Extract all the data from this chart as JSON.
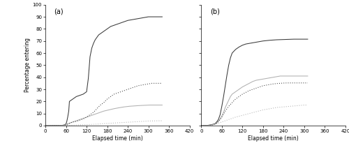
{
  "title_a": "(a)",
  "title_b": "(b)",
  "xlabel": "Elapsed time (min)",
  "ylabel": "Percentage entering",
  "xlim": [
    0,
    420
  ],
  "ylim": [
    0,
    100
  ],
  "xticks": [
    0,
    60,
    120,
    180,
    240,
    300,
    360,
    420
  ],
  "yticks": [
    0,
    10,
    20,
    30,
    40,
    50,
    60,
    70,
    80,
    90,
    100
  ],
  "color_dark": "#3a3a3a",
  "color_gray": "#b0b0b0",
  "panel_a": {
    "wild_large_solid": {
      "x": [
        0,
        50,
        58,
        60,
        62,
        65,
        68,
        70,
        75,
        80,
        85,
        90,
        100,
        110,
        120,
        125,
        130,
        135,
        140,
        145,
        150,
        155,
        160,
        170,
        180,
        190,
        200,
        210,
        220,
        230,
        240,
        250,
        260,
        270,
        280,
        290,
        300,
        310,
        320,
        330,
        340
      ],
      "y": [
        0,
        0.3,
        0.8,
        1.5,
        3,
        7,
        12,
        20,
        21,
        22,
        23,
        24,
        25,
        26,
        28,
        39,
        57,
        64,
        68,
        71,
        73,
        75,
        76,
        78,
        80,
        82,
        83,
        84,
        85,
        86,
        87,
        87.5,
        88,
        88.5,
        89,
        89.5,
        90,
        90,
        90,
        90,
        90
      ]
    },
    "wild_small_dotted": {
      "x": [
        0,
        50,
        58,
        62,
        65,
        70,
        75,
        80,
        90,
        100,
        110,
        120,
        130,
        140,
        150,
        160,
        170,
        180,
        190,
        200,
        210,
        220,
        230,
        240,
        250,
        260,
        270,
        280,
        290,
        300,
        310,
        320,
        330,
        340
      ],
      "y": [
        0,
        0.2,
        0.5,
        1,
        1.5,
        2,
        2.5,
        3,
        3.5,
        4.5,
        5.5,
        7,
        9,
        11,
        14,
        17,
        19,
        22,
        24,
        26,
        27,
        28,
        29,
        30,
        31,
        32,
        33,
        33.5,
        34,
        34.5,
        35,
        35,
        35,
        35
      ]
    },
    "hatchery_large_solid": {
      "x": [
        0,
        55,
        62,
        68,
        75,
        85,
        95,
        110,
        125,
        140,
        155,
        170,
        185,
        200,
        215,
        230,
        245,
        260,
        275,
        290,
        305,
        320,
        335,
        340
      ],
      "y": [
        0,
        0.2,
        0.8,
        1.5,
        2.5,
        3.5,
        4.5,
        6,
        7.5,
        9,
        10.5,
        12,
        13,
        14,
        14.8,
        15.5,
        16,
        16.3,
        16.6,
        16.8,
        17,
        17,
        17,
        17
      ]
    },
    "hatchery_small_dotted": {
      "x": [
        0,
        60,
        90,
        120,
        150,
        180,
        210,
        240,
        270,
        300,
        330,
        340
      ],
      "y": [
        0,
        0.2,
        0.5,
        0.8,
        1.2,
        1.8,
        2.3,
        2.8,
        3.3,
        3.8,
        4,
        4
      ]
    }
  },
  "panel_b": {
    "wild_large_solid": {
      "x": [
        0,
        20,
        30,
        40,
        45,
        50,
        55,
        60,
        65,
        70,
        75,
        80,
        85,
        90,
        100,
        110,
        120,
        130,
        140,
        150,
        160,
        170,
        180,
        190,
        200,
        210,
        220,
        230,
        240,
        250,
        260,
        270,
        280,
        290,
        300,
        310
      ],
      "y": [
        0,
        0.3,
        0.8,
        1.5,
        3,
        5,
        9,
        16,
        24,
        33,
        42,
        50,
        56,
        60,
        63,
        65,
        66.5,
        67.5,
        68,
        68.5,
        69,
        69.5,
        70,
        70.3,
        70.6,
        70.8,
        71,
        71.1,
        71.2,
        71.3,
        71.4,
        71.5,
        71.5,
        71.5,
        71.5,
        71.5
      ]
    },
    "hatchery_large_solid": {
      "x": [
        0,
        20,
        30,
        40,
        45,
        50,
        55,
        60,
        65,
        70,
        75,
        80,
        85,
        90,
        100,
        110,
        120,
        130,
        140,
        150,
        160,
        170,
        180,
        190,
        200,
        210,
        220,
        230,
        240,
        250,
        260,
        270,
        280,
        290,
        300,
        310
      ],
      "y": [
        0,
        0.2,
        0.5,
        1,
        2,
        3.5,
        5.5,
        8,
        11,
        15,
        18,
        21,
        24,
        26,
        28,
        30,
        32,
        33.5,
        35,
        36.5,
        37.5,
        38,
        38.5,
        39,
        39.5,
        40,
        40.5,
        41,
        41,
        41,
        41,
        41,
        41,
        41,
        41,
        41
      ]
    },
    "wild_small_dotted": {
      "x": [
        0,
        20,
        30,
        40,
        45,
        50,
        55,
        60,
        65,
        70,
        80,
        90,
        100,
        110,
        120,
        130,
        140,
        150,
        160,
        170,
        180,
        190,
        200,
        210,
        220,
        230,
        240,
        250,
        260,
        270,
        280,
        290,
        300,
        310
      ],
      "y": [
        0,
        0.2,
        0.5,
        1,
        2,
        3.5,
        5,
        7,
        9.5,
        12,
        16,
        19,
        22,
        24,
        26,
        27.5,
        29,
        30,
        31,
        32,
        33,
        33.5,
        34,
        34.5,
        34.8,
        35,
        35.2,
        35.3,
        35.3,
        35.3,
        35.3,
        35.3,
        35.3,
        35.3
      ]
    },
    "hatchery_small_dotted": {
      "x": [
        0,
        20,
        30,
        40,
        50,
        60,
        70,
        80,
        90,
        100,
        120,
        140,
        160,
        180,
        200,
        220,
        240,
        260,
        280,
        300,
        310
      ],
      "y": [
        0,
        0.2,
        0.5,
        1,
        2,
        3,
        4,
        5,
        6,
        7,
        8.5,
        10,
        11.5,
        13,
        14,
        15,
        15.5,
        16,
        16.5,
        17,
        17
      ]
    }
  }
}
